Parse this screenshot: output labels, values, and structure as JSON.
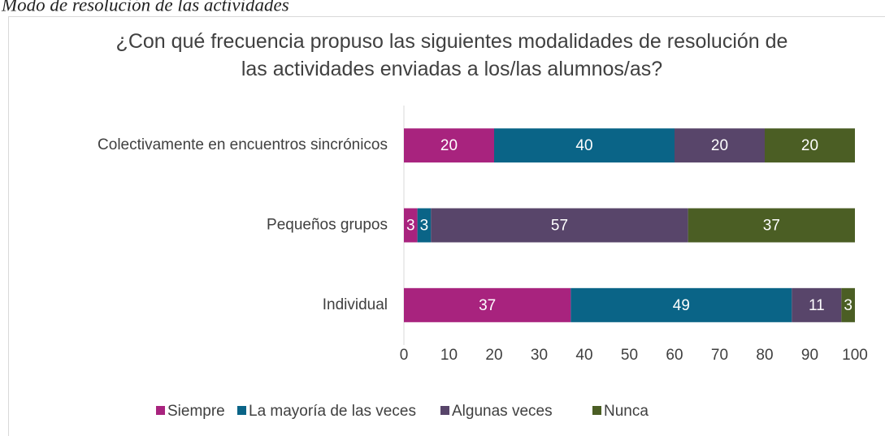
{
  "chart_data": {
    "type": "stacked_barh",
    "caption": "Modo de resolución de las actividades",
    "title": "¿Con qué frecuencia propuso las siguientes modalidades de resolución de las actividades enviadas a los/las alumnos/as?",
    "categories": [
      "Colectivamente en encuentros sincrónicos",
      "Pequeños grupos",
      "Individual"
    ],
    "series": [
      {
        "name": "Siempre",
        "color": "#a8237e",
        "values": [
          20,
          3,
          37
        ]
      },
      {
        "name": "La mayoría de las veces",
        "color": "#0a6487",
        "values": [
          40,
          3,
          49
        ]
      },
      {
        "name": "Algunas veces",
        "color": "#58456a",
        "values": [
          20,
          57,
          11
        ]
      },
      {
        "name": "Nunca",
        "color": "#4b5e24",
        "values": [
          20,
          37,
          3
        ]
      }
    ],
    "xlim": [
      0,
      100
    ],
    "xticks": [
      0,
      10,
      20,
      30,
      40,
      50,
      60,
      70,
      80,
      90,
      100
    ],
    "legend": "bottom"
  }
}
